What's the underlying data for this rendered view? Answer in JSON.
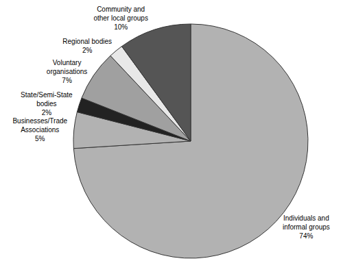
{
  "chart_data": {
    "type": "pie",
    "categories": [
      "Individuals and\ninformal groups",
      "Businesses/Trade\nAssociations",
      "State/Semi-State\nbodies",
      "Voluntary\norganisations",
      "Regional bodies",
      "Community and\nother local groups"
    ],
    "values": [
      74,
      5,
      2,
      7,
      2,
      10
    ],
    "value_labels": [
      "74%",
      "5%",
      "2%",
      "7%",
      "2%",
      "10%"
    ],
    "colors": [
      "#b2b2b2",
      "#b2b2b2",
      "#222222",
      "#a0a0a0",
      "#e8e8e8",
      "#555555"
    ]
  }
}
